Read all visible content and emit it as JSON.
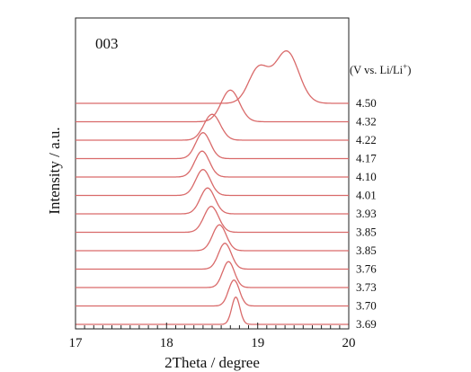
{
  "chart_data": {
    "type": "line",
    "panel_label": "003",
    "xlabel": "2Theta / degree",
    "ylabel": "Intensity / a.u.",
    "voltage_unit_label": "(V vs. Li/Li",
    "voltage_unit_superscript": "+",
    "voltage_unit_close": ")",
    "xlim": [
      17,
      20
    ],
    "x_ticks": [
      "17",
      "18",
      "19",
      "20"
    ],
    "grid": false,
    "line_color": "#d96a6a",
    "series": [
      {
        "name": "3.69",
        "peak_2theta": 18.76,
        "peak_height": 0.95,
        "peak_width": 0.045
      },
      {
        "name": "3.70",
        "peak_2theta": 18.74,
        "peak_height": 0.9,
        "peak_width": 0.06
      },
      {
        "name": "3.73",
        "peak_2theta": 18.68,
        "peak_height": 0.9,
        "peak_width": 0.065
      },
      {
        "name": "3.76",
        "peak_2theta": 18.64,
        "peak_height": 0.9,
        "peak_width": 0.07
      },
      {
        "name": "3.85",
        "peak_2theta": 18.58,
        "peak_height": 0.9,
        "peak_width": 0.075
      },
      {
        "name": "3.85",
        "peak_2theta": 18.49,
        "peak_height": 0.9,
        "peak_width": 0.08
      },
      {
        "name": "3.93",
        "peak_2theta": 18.45,
        "peak_height": 0.9,
        "peak_width": 0.08
      },
      {
        "name": "4.01",
        "peak_2theta": 18.4,
        "peak_height": 0.9,
        "peak_width": 0.08
      },
      {
        "name": "4.10",
        "peak_2theta": 18.39,
        "peak_height": 0.9,
        "peak_width": 0.08
      },
      {
        "name": "4.17",
        "peak_2theta": 18.4,
        "peak_height": 0.9,
        "peak_width": 0.08
      },
      {
        "name": "4.22",
        "peak_2theta": 18.5,
        "peak_height": 0.9,
        "peak_width": 0.09
      },
      {
        "name": "4.32",
        "peak_2theta": 18.7,
        "peak_height": 1.1,
        "peak_width": 0.1
      },
      {
        "name": "4.50",
        "peak_2theta": 19.01,
        "peak_height": 1.2,
        "peak_width": 0.11,
        "second_peak_2theta": 19.32,
        "second_peak_height": 1.8,
        "second_peak_width": 0.13
      }
    ]
  }
}
